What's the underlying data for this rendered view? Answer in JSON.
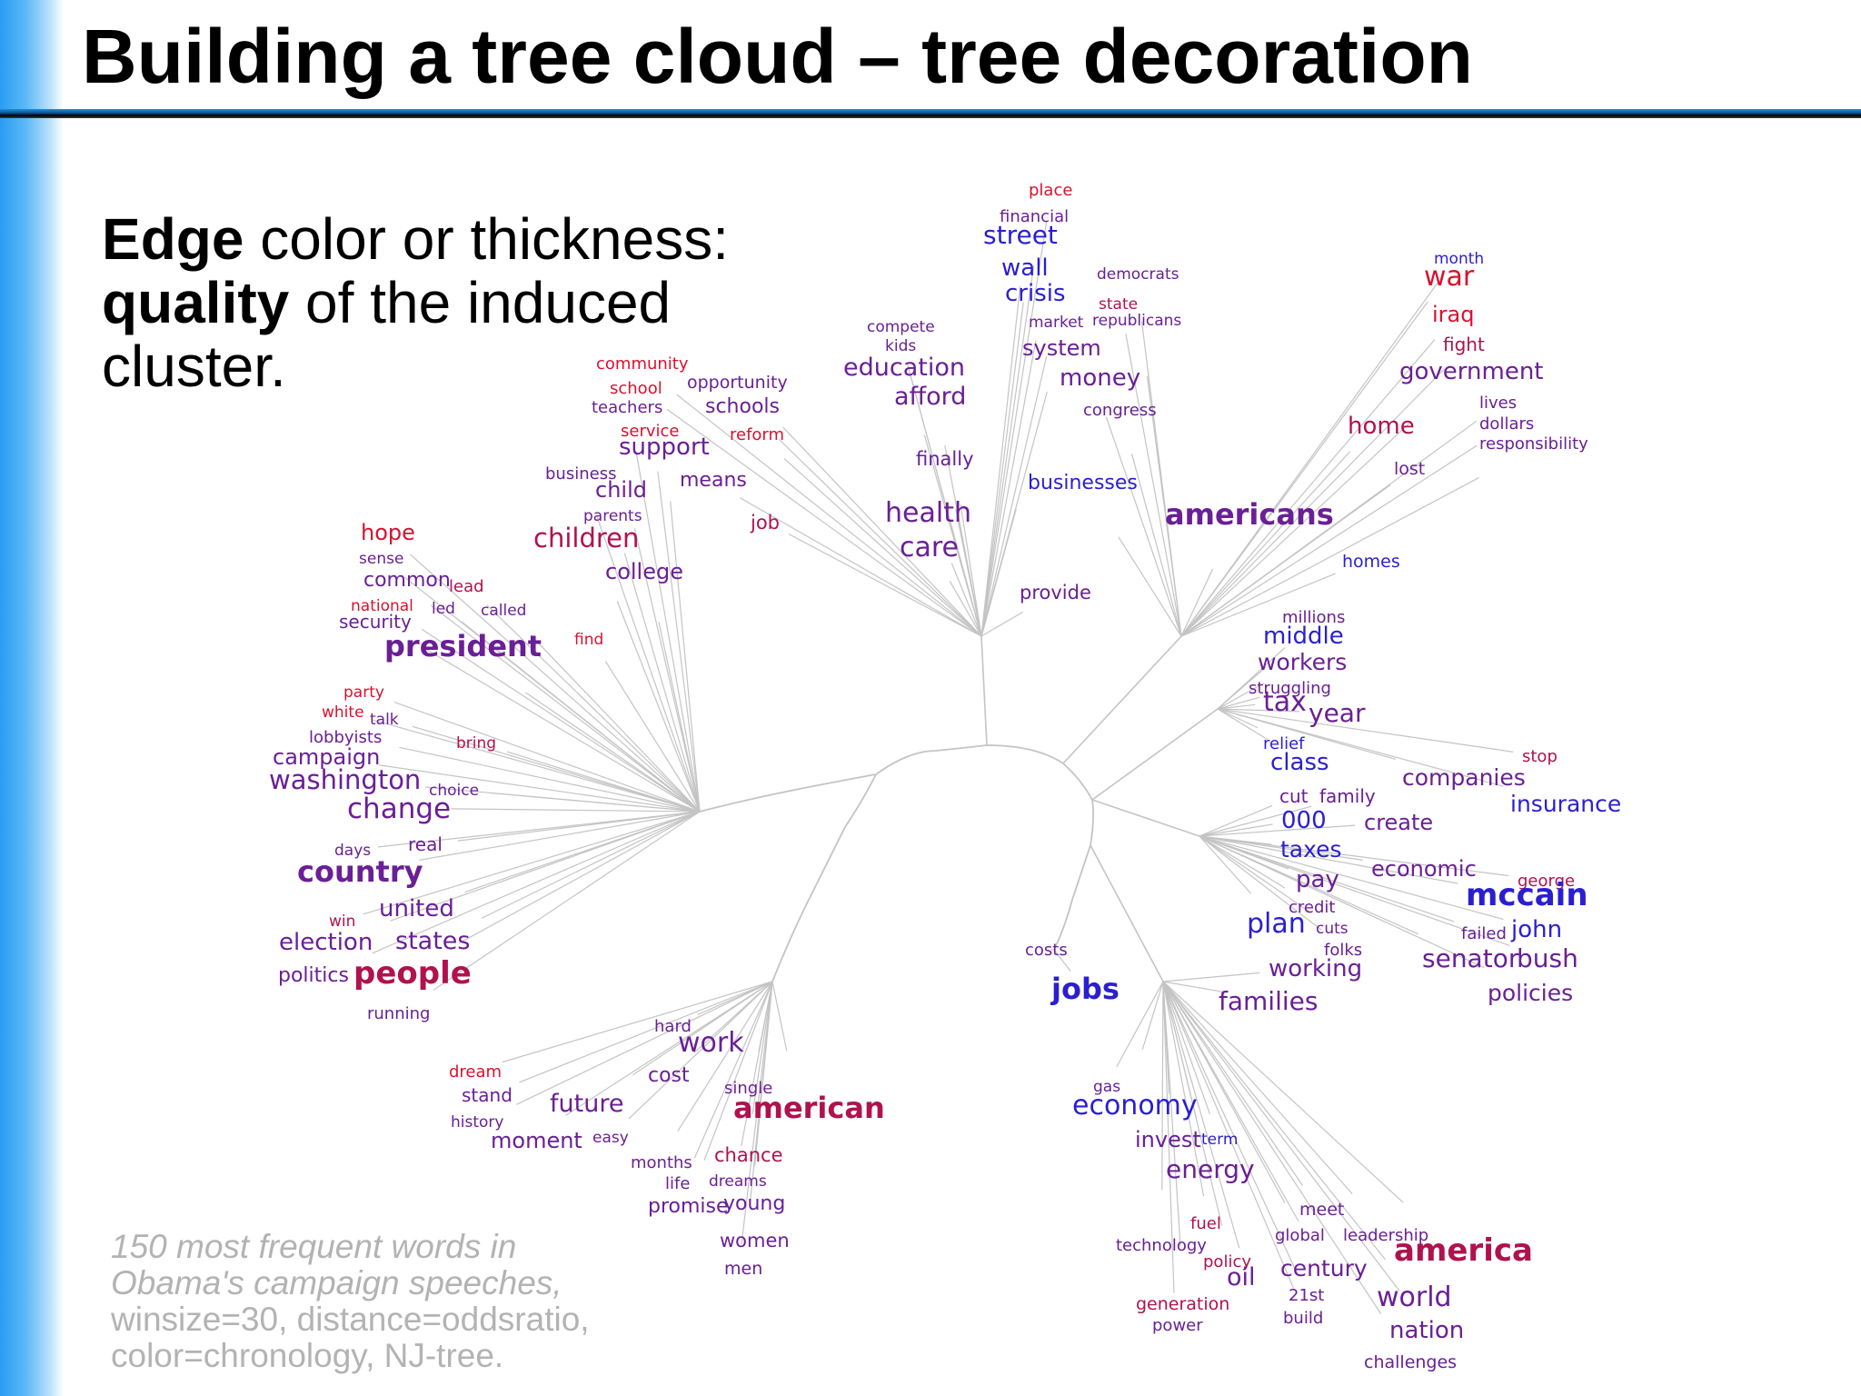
{
  "title": "Building a tree cloud – tree decoration",
  "bullet": {
    "edge": "Edge",
    "text1": " color or thickness:",
    "quality": "quality",
    "text2": " of the induced cluster."
  },
  "caption": {
    "line1": "150 most frequent words in",
    "line2": "Obama's campaign speeches,",
    "line3": "winsize=30, distance=oddsratio,",
    "line4": "color=chronology, NJ-tree."
  },
  "colors": {
    "edge": "#c4c4c4",
    "red": "#d8122f",
    "crimson": "#b0124e",
    "purple": "#6a1f96",
    "blue": "#2a1fd0"
  },
  "words": [
    {
      "t": "place",
      "c": "red",
      "s": 18
    },
    {
      "t": "financial",
      "c": "purple",
      "s": 18
    },
    {
      "t": "street",
      "c": "blue",
      "s": 28
    },
    {
      "t": "wall",
      "c": "blue",
      "s": 26
    },
    {
      "t": "crisis",
      "c": "blue",
      "s": 26
    },
    {
      "t": "democrats",
      "c": "purple",
      "s": 17
    },
    {
      "t": "state",
      "c": "crimson",
      "s": 17
    },
    {
      "t": "market",
      "c": "purple",
      "s": 17
    },
    {
      "t": "republicans",
      "c": "purple",
      "s": 17
    },
    {
      "t": "system",
      "c": "purple",
      "s": 24
    },
    {
      "t": "money",
      "c": "purple",
      "s": 26
    },
    {
      "t": "congress",
      "c": "purple",
      "s": 18
    },
    {
      "t": "compete",
      "c": "purple",
      "s": 17
    },
    {
      "t": "kids",
      "c": "purple",
      "s": 17
    },
    {
      "t": "education",
      "c": "purple",
      "s": 27
    },
    {
      "t": "afford",
      "c": "purple",
      "s": 27
    },
    {
      "t": "finally",
      "c": "purple",
      "s": 21
    },
    {
      "t": "businesses",
      "c": "blue",
      "s": 22
    },
    {
      "t": "health",
      "c": "purple",
      "s": 30
    },
    {
      "t": "care",
      "c": "purple",
      "s": 30
    },
    {
      "t": "americans",
      "c": "purple",
      "s": 32
    },
    {
      "t": "provide",
      "c": "purple",
      "s": 21
    },
    {
      "t": "month",
      "c": "blue",
      "s": 17
    },
    {
      "t": "war",
      "c": "red",
      "s": 30
    },
    {
      "t": "iraq",
      "c": "red",
      "s": 24
    },
    {
      "t": "fight",
      "c": "crimson",
      "s": 20
    },
    {
      "t": "government",
      "c": "purple",
      "s": 26
    },
    {
      "t": "lives",
      "c": "purple",
      "s": 18
    },
    {
      "t": "dollars",
      "c": "purple",
      "s": 18
    },
    {
      "t": "responsibility",
      "c": "purple",
      "s": 18
    },
    {
      "t": "home",
      "c": "crimson",
      "s": 26
    },
    {
      "t": "lost",
      "c": "purple",
      "s": 19
    },
    {
      "t": "homes",
      "c": "blue",
      "s": 19
    },
    {
      "t": "millions",
      "c": "purple",
      "s": 18
    },
    {
      "t": "middle",
      "c": "blue",
      "s": 26
    },
    {
      "t": "workers",
      "c": "purple",
      "s": 25
    },
    {
      "t": "struggling",
      "c": "purple",
      "s": 18
    },
    {
      "t": "tax",
      "c": "purple",
      "s": 30
    },
    {
      "t": "year",
      "c": "purple",
      "s": 28
    },
    {
      "t": "relief",
      "c": "blue",
      "s": 18
    },
    {
      "t": "class",
      "c": "blue",
      "s": 26
    },
    {
      "t": "stop",
      "c": "crimson",
      "s": 18
    },
    {
      "t": "companies",
      "c": "purple",
      "s": 25
    },
    {
      "t": "insurance",
      "c": "blue",
      "s": 25
    },
    {
      "t": "cut",
      "c": "purple",
      "s": 20
    },
    {
      "t": "family",
      "c": "purple",
      "s": 20
    },
    {
      "t": "000",
      "c": "blue",
      "s": 26
    },
    {
      "t": "create",
      "c": "purple",
      "s": 24
    },
    {
      "t": "taxes",
      "c": "blue",
      "s": 25
    },
    {
      "t": "economic",
      "c": "purple",
      "s": 24
    },
    {
      "t": "george",
      "c": "crimson",
      "s": 18
    },
    {
      "t": "pay",
      "c": "purple",
      "s": 26
    },
    {
      "t": "mccain",
      "c": "blue",
      "s": 34
    },
    {
      "t": "credit",
      "c": "purple",
      "s": 18
    },
    {
      "t": "plan",
      "c": "blue",
      "s": 30
    },
    {
      "t": "cuts",
      "c": "purple",
      "s": 17
    },
    {
      "t": "failed",
      "c": "purple",
      "s": 18
    },
    {
      "t": "john",
      "c": "blue",
      "s": 26
    },
    {
      "t": "folks",
      "c": "purple",
      "s": 18
    },
    {
      "t": "working",
      "c": "purple",
      "s": 26
    },
    {
      "t": "senator",
      "c": "purple",
      "s": 28
    },
    {
      "t": "bush",
      "c": "purple",
      "s": 28
    },
    {
      "t": "families",
      "c": "purple",
      "s": 28
    },
    {
      "t": "policies",
      "c": "purple",
      "s": 25
    },
    {
      "t": "costs",
      "c": "purple",
      "s": 18
    },
    {
      "t": "jobs",
      "c": "blue",
      "s": 32
    },
    {
      "t": "community",
      "c": "red",
      "s": 18
    },
    {
      "t": "school",
      "c": "red",
      "s": 18
    },
    {
      "t": "opportunity",
      "c": "purple",
      "s": 19
    },
    {
      "t": "teachers",
      "c": "purple",
      "s": 18
    },
    {
      "t": "schools",
      "c": "purple",
      "s": 22
    },
    {
      "t": "service",
      "c": "red",
      "s": 18
    },
    {
      "t": "support",
      "c": "purple",
      "s": 26
    },
    {
      "t": "reform",
      "c": "red",
      "s": 18
    },
    {
      "t": "business",
      "c": "purple",
      "s": 18
    },
    {
      "t": "child",
      "c": "purple",
      "s": 24
    },
    {
      "t": "means",
      "c": "purple",
      "s": 22
    },
    {
      "t": "parents",
      "c": "purple",
      "s": 17
    },
    {
      "t": "job",
      "c": "crimson",
      "s": 21
    },
    {
      "t": "hope",
      "c": "red",
      "s": 24
    },
    {
      "t": "children",
      "c": "crimson",
      "s": 29
    },
    {
      "t": "sense",
      "c": "purple",
      "s": 17
    },
    {
      "t": "college",
      "c": "purple",
      "s": 24
    },
    {
      "t": "common",
      "c": "purple",
      "s": 22
    },
    {
      "t": "lead",
      "c": "crimson",
      "s": 18
    },
    {
      "t": "national",
      "c": "red",
      "s": 17
    },
    {
      "t": "led",
      "c": "purple",
      "s": 17
    },
    {
      "t": "called",
      "c": "purple",
      "s": 17
    },
    {
      "t": "security",
      "c": "purple",
      "s": 20
    },
    {
      "t": "find",
      "c": "red",
      "s": 17
    },
    {
      "t": "president",
      "c": "purple",
      "s": 32
    },
    {
      "t": "party",
      "c": "red",
      "s": 17
    },
    {
      "t": "white",
      "c": "red",
      "s": 17
    },
    {
      "t": "talk",
      "c": "purple",
      "s": 17
    },
    {
      "t": "lobbyists",
      "c": "purple",
      "s": 18
    },
    {
      "t": "bring",
      "c": "crimson",
      "s": 17
    },
    {
      "t": "campaign",
      "c": "purple",
      "s": 24
    },
    {
      "t": "washington",
      "c": "purple",
      "s": 29
    },
    {
      "t": "choice",
      "c": "purple",
      "s": 17
    },
    {
      "t": "change",
      "c": "purple",
      "s": 31
    },
    {
      "t": "days",
      "c": "purple",
      "s": 17
    },
    {
      "t": "real",
      "c": "purple",
      "s": 20
    },
    {
      "t": "country",
      "c": "purple",
      "s": 32
    },
    {
      "t": "united",
      "c": "purple",
      "s": 26
    },
    {
      "t": "win",
      "c": "crimson",
      "s": 17
    },
    {
      "t": "election",
      "c": "purple",
      "s": 26
    },
    {
      "t": "states",
      "c": "purple",
      "s": 27
    },
    {
      "t": "politics",
      "c": "purple",
      "s": 22
    },
    {
      "t": "people",
      "c": "crimson",
      "s": 34
    },
    {
      "t": "running",
      "c": "purple",
      "s": 18
    },
    {
      "t": "hard",
      "c": "purple",
      "s": 18
    },
    {
      "t": "work",
      "c": "purple",
      "s": 30
    },
    {
      "t": "dream",
      "c": "red",
      "s": 18
    },
    {
      "t": "cost",
      "c": "purple",
      "s": 22
    },
    {
      "t": "stand",
      "c": "purple",
      "s": 20
    },
    {
      "t": "single",
      "c": "purple",
      "s": 18
    },
    {
      "t": "future",
      "c": "purple",
      "s": 27
    },
    {
      "t": "american",
      "c": "crimson",
      "s": 32
    },
    {
      "t": "history",
      "c": "purple",
      "s": 17
    },
    {
      "t": "moment",
      "c": "purple",
      "s": 24
    },
    {
      "t": "easy",
      "c": "purple",
      "s": 17
    },
    {
      "t": "chance",
      "c": "crimson",
      "s": 21
    },
    {
      "t": "months",
      "c": "purple",
      "s": 18
    },
    {
      "t": "dreams",
      "c": "purple",
      "s": 17
    },
    {
      "t": "life",
      "c": "purple",
      "s": 18
    },
    {
      "t": "promise",
      "c": "purple",
      "s": 22
    },
    {
      "t": "young",
      "c": "purple",
      "s": 22
    },
    {
      "t": "women",
      "c": "purple",
      "s": 21
    },
    {
      "t": "men",
      "c": "purple",
      "s": 19
    },
    {
      "t": "gas",
      "c": "purple",
      "s": 17
    },
    {
      "t": "economy",
      "c": "blue",
      "s": 30
    },
    {
      "t": "invest",
      "c": "purple",
      "s": 24
    },
    {
      "t": "term",
      "c": "blue",
      "s": 17
    },
    {
      "t": "energy",
      "c": "purple",
      "s": 28
    },
    {
      "t": "meet",
      "c": "purple",
      "s": 19
    },
    {
      "t": "fuel",
      "c": "crimson",
      "s": 18
    },
    {
      "t": "global",
      "c": "purple",
      "s": 18
    },
    {
      "t": "leadership",
      "c": "purple",
      "s": 18
    },
    {
      "t": "technology",
      "c": "purple",
      "s": 18
    },
    {
      "t": "america",
      "c": "crimson",
      "s": 34
    },
    {
      "t": "policy",
      "c": "crimson",
      "s": 18
    },
    {
      "t": "century",
      "c": "purple",
      "s": 25
    },
    {
      "t": "oil",
      "c": "purple",
      "s": 27
    },
    {
      "t": "21st",
      "c": "purple",
      "s": 18
    },
    {
      "t": "world",
      "c": "purple",
      "s": 30
    },
    {
      "t": "generation",
      "c": "crimson",
      "s": 19
    },
    {
      "t": "build",
      "c": "purple",
      "s": 18
    },
    {
      "t": "nation",
      "c": "purple",
      "s": 26
    },
    {
      "t": "power",
      "c": "purple",
      "s": 18
    },
    {
      "t": "challenges",
      "c": "purple",
      "s": 19
    }
  ]
}
